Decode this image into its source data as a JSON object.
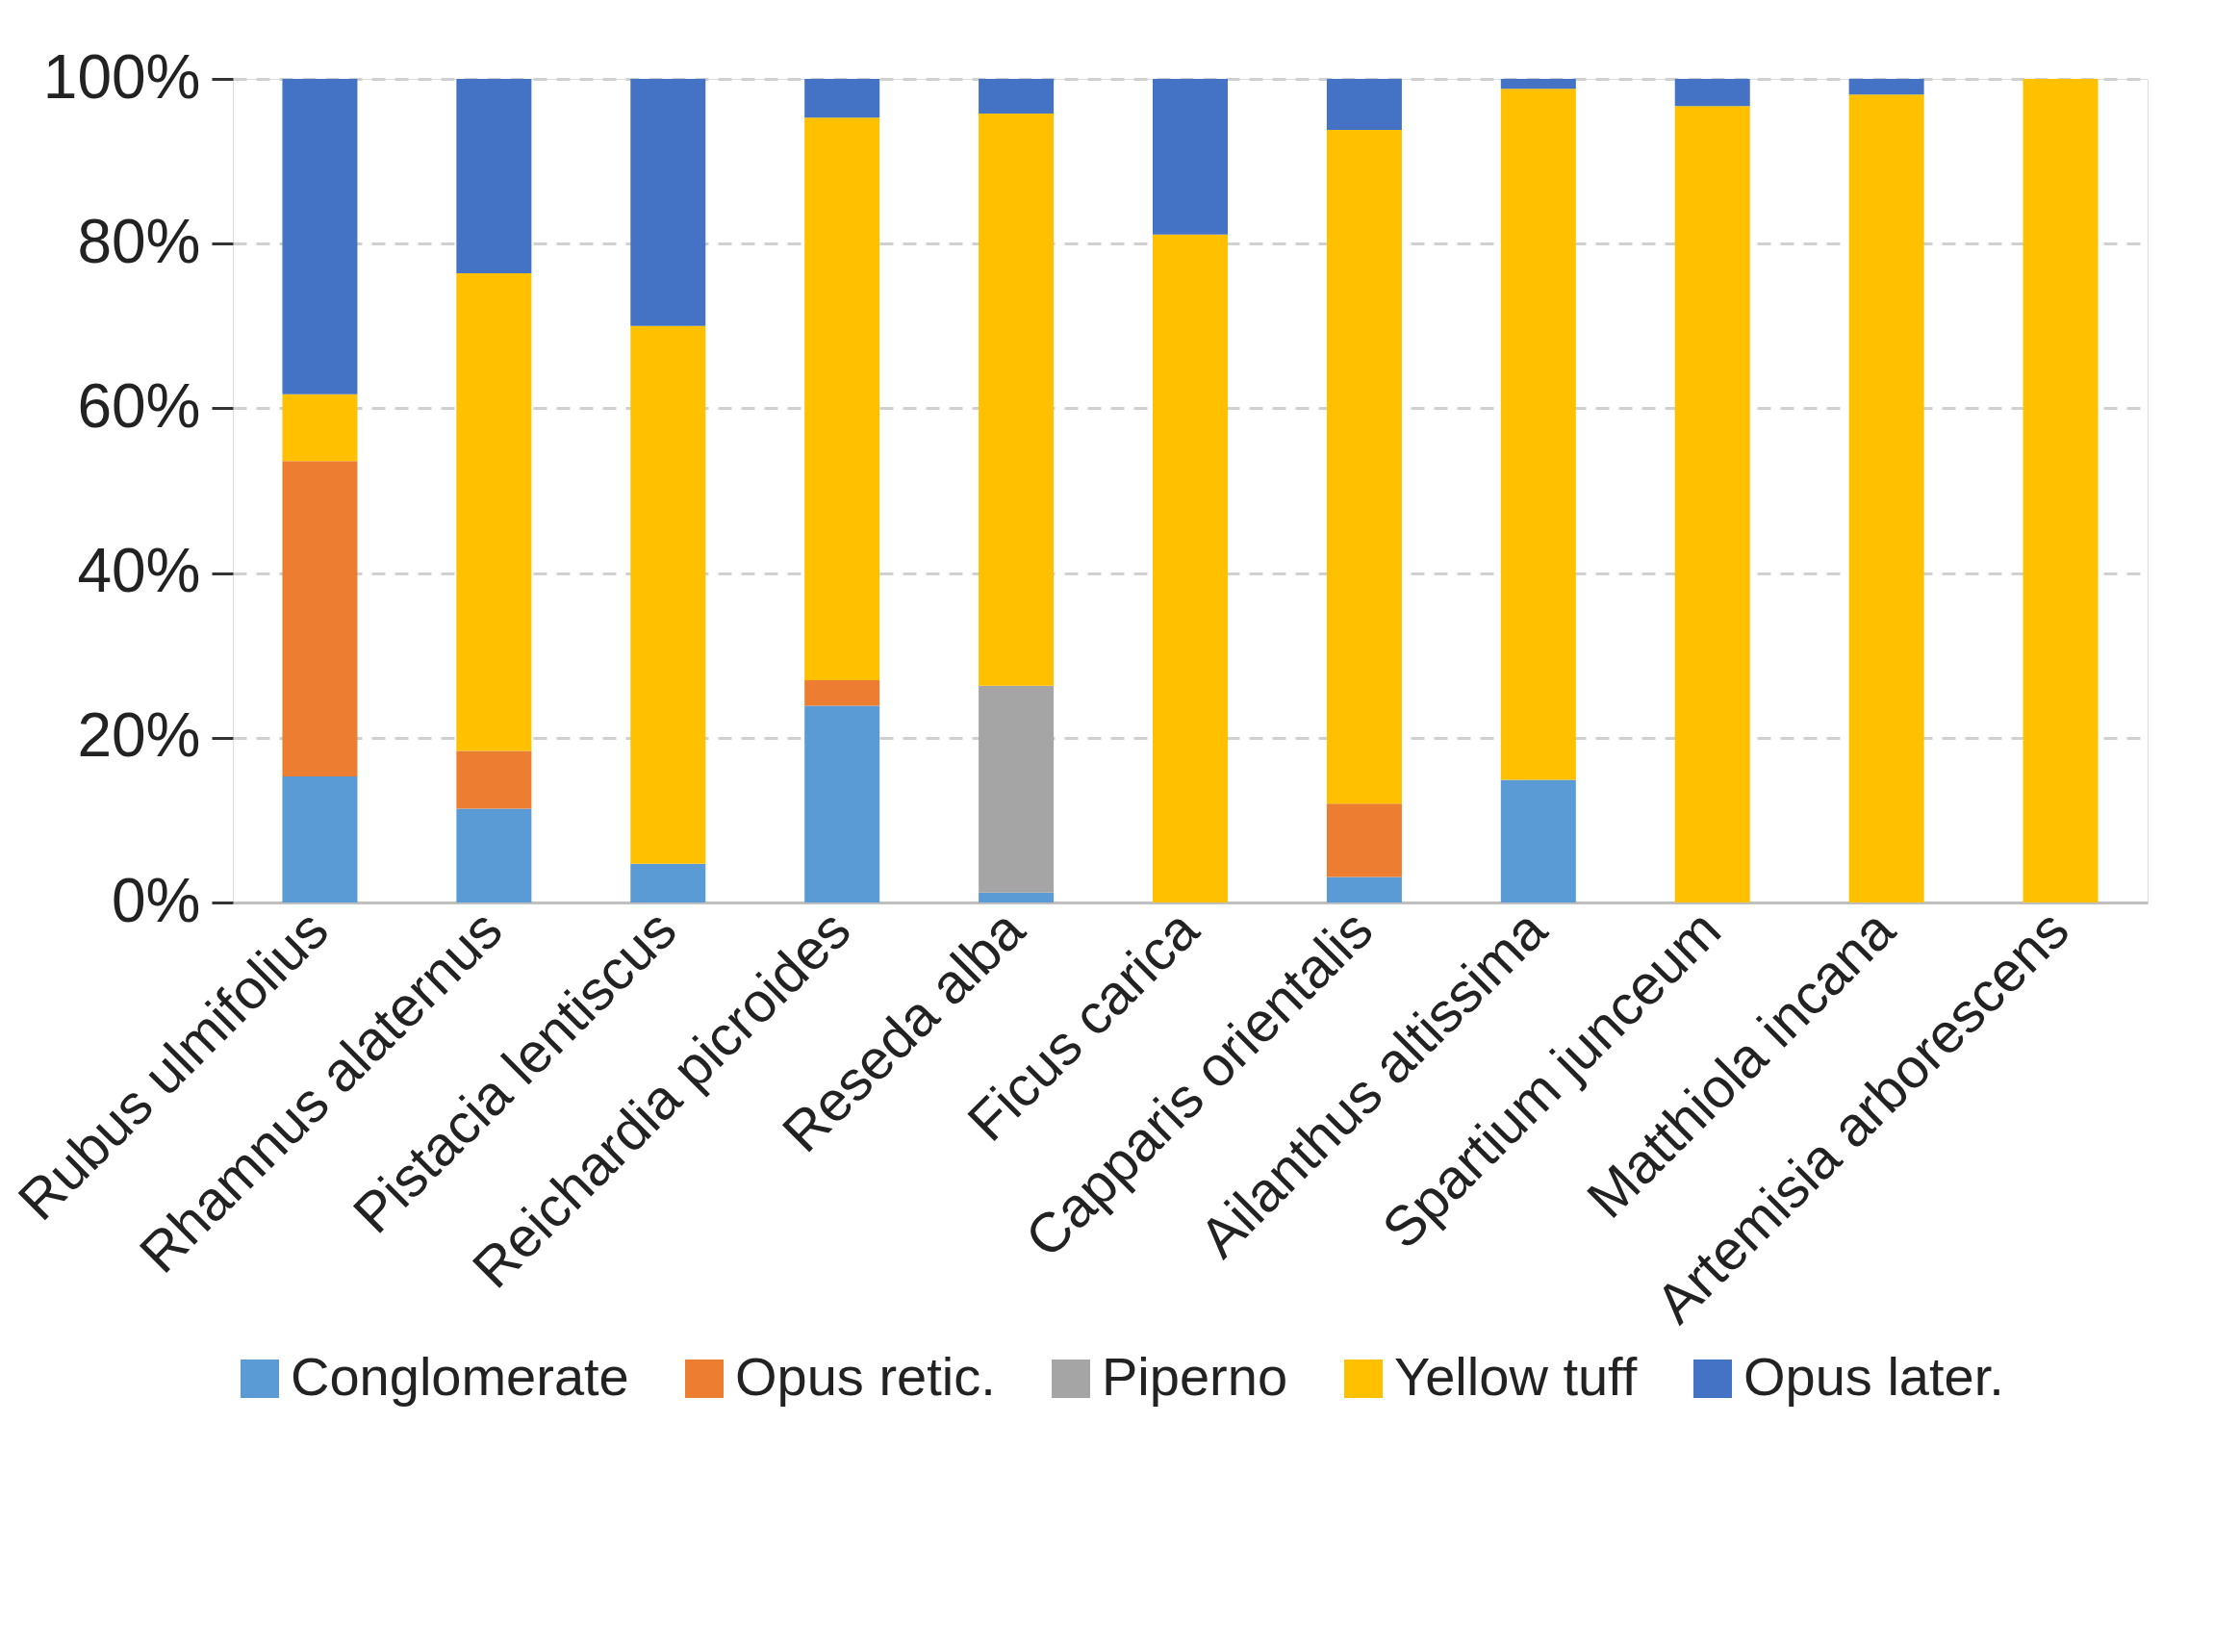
{
  "chart_data": {
    "type": "bar",
    "stacked": true,
    "categories": [
      "Rubus ulmifolius",
      "Rhamnus alaternus",
      "Pistacia lentiscus",
      "Reichardia picroides",
      "Reseda alba",
      "Ficus carica",
      "Capparis orientalis",
      "Ailanthus altissima",
      "Spartium junceum",
      "Matthiola incana",
      "Artemisia arborescens"
    ],
    "series": [
      {
        "name": "Conglomerate",
        "color": "#5b9bd5",
        "values": [
          15.3,
          11.4,
          4.7,
          23.9,
          1.2,
          0,
          3.1,
          14.9,
          0,
          0,
          0
        ]
      },
      {
        "name": "Opus retic.",
        "color": "#ed7d31",
        "values": [
          38.3,
          7.0,
          0,
          3.1,
          0,
          0,
          8.9,
          0,
          0,
          0,
          0
        ]
      },
      {
        "name": "Piperno",
        "color": "#a5a5a5",
        "values": [
          0,
          0,
          0,
          0,
          25.1,
          0,
          0,
          0,
          0,
          0,
          0
        ]
      },
      {
        "name": "Yellow tuff",
        "color": "#ffc000",
        "values": [
          8.1,
          58.0,
          65.3,
          68.3,
          69.5,
          81.1,
          81.8,
          83.9,
          96.7,
          98.1,
          100
        ]
      },
      {
        "name": "Opus later.",
        "color": "#4472c4",
        "values": [
          38.3,
          23.6,
          30.0,
          4.7,
          4.2,
          18.9,
          6.2,
          1.2,
          3.3,
          1.9,
          0
        ]
      }
    ],
    "ylim": [
      0,
      100
    ],
    "yticks": [
      {
        "value": 0,
        "label": "0%"
      },
      {
        "value": 20,
        "label": "20%"
      },
      {
        "value": 40,
        "label": "40%"
      },
      {
        "value": 60,
        "label": "60%"
      },
      {
        "value": 80,
        "label": "80%"
      },
      {
        "value": 100,
        "label": "100%"
      }
    ],
    "grid": "y",
    "legend": "bottom"
  }
}
